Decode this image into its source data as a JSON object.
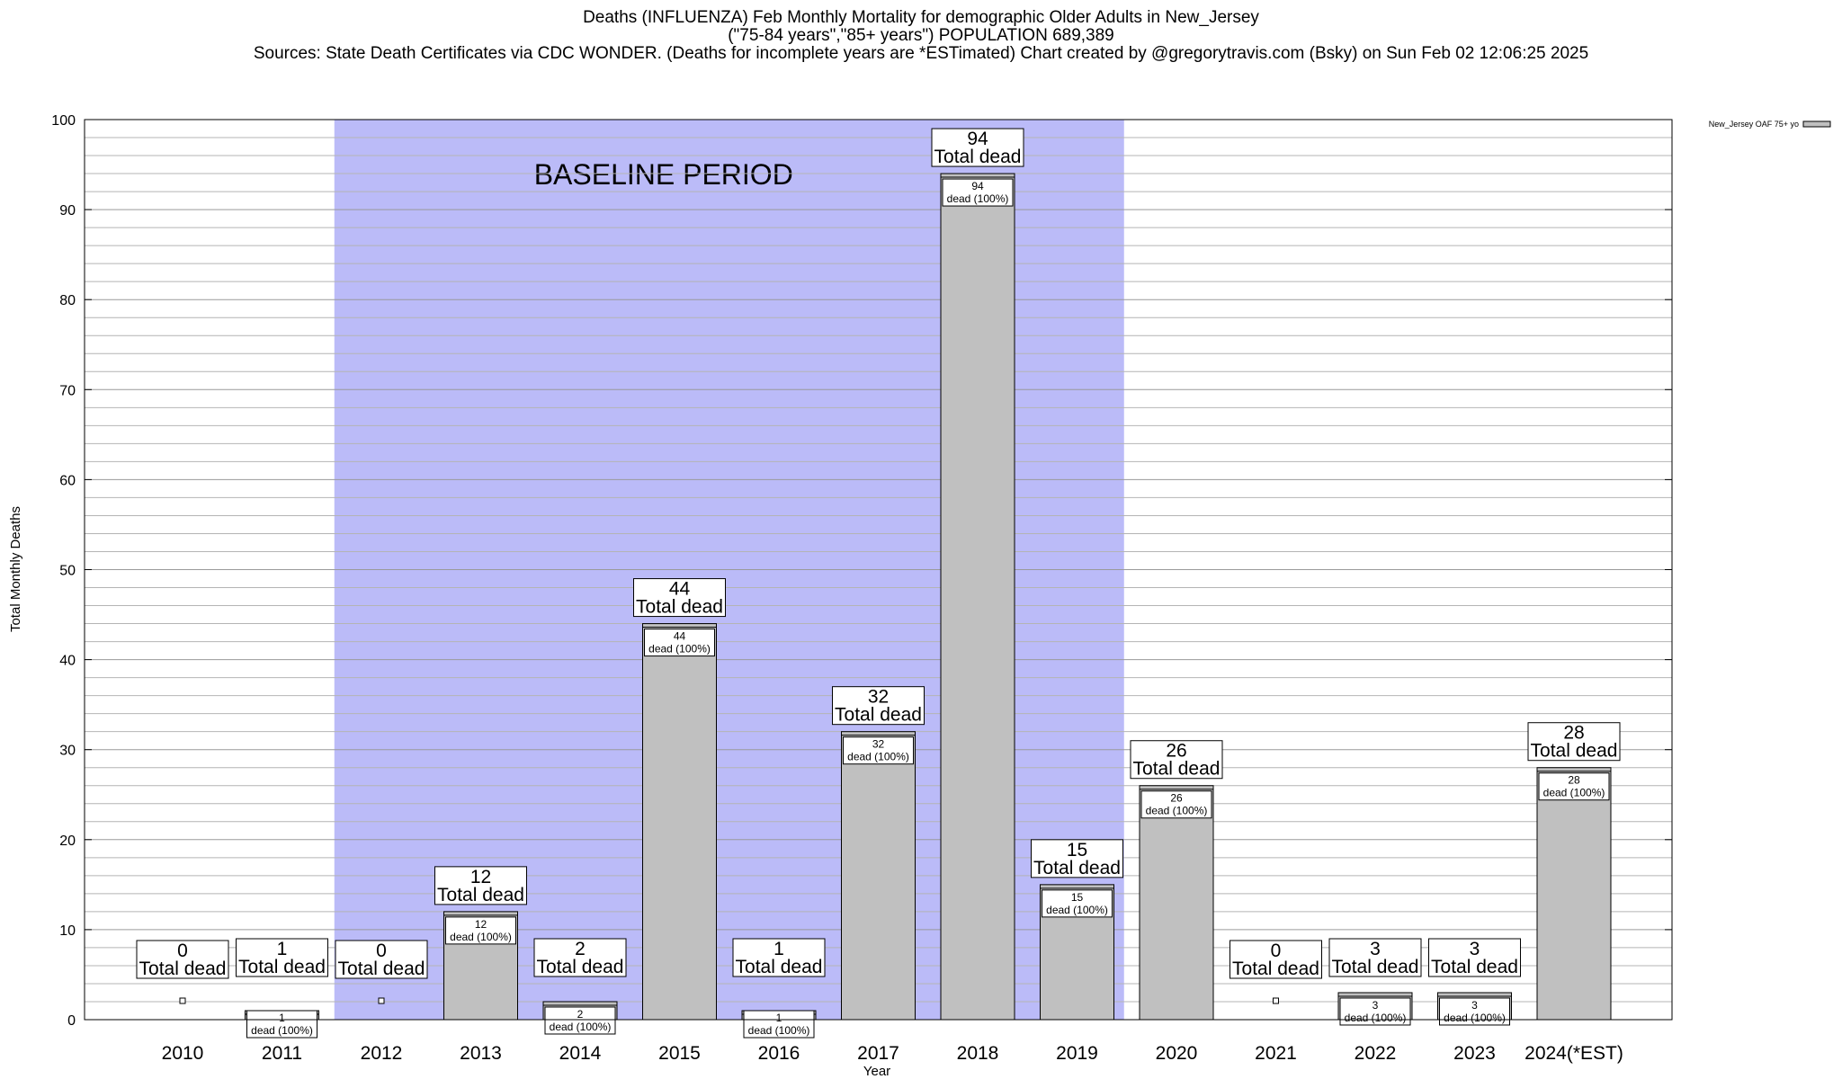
{
  "chart_data": {
    "type": "bar",
    "title": [
      "Deaths (INFLUENZA) Feb Monthly Mortality for demographic Older Adults in New_Jersey",
      "(\"75-84 years\",\"85+ years\") POPULATION 689,389",
      "Sources: State Death Certificates via CDC WONDER. (Deaths for incomplete years are *ESTimated)                 Chart created by @gregorytravis.com (Bsky) on Sun Feb 02 12:06:25 2025"
    ],
    "xlabel": "Year",
    "ylabel": "Total Monthly Deaths",
    "ylim": [
      0,
      100
    ],
    "yticks": [
      0,
      10,
      20,
      30,
      40,
      50,
      60,
      70,
      80,
      90,
      100
    ],
    "grid": true,
    "categories": [
      "2010",
      "2011",
      "2012",
      "2013",
      "2014",
      "2015",
      "2016",
      "2017",
      "2018",
      "2019",
      "2020",
      "2021",
      "2022",
      "2023",
      "2024(*EST)"
    ],
    "series": [
      {
        "name": "New_Jersey OAF 75+ yo",
        "color": "#c0c0c0",
        "values": [
          0,
          1,
          0,
          12,
          2,
          44,
          1,
          32,
          94,
          15,
          26,
          0,
          3,
          3,
          28
        ]
      }
    ],
    "bar_top_label": "Total dead",
    "bar_inner_label": "dead (100%)",
    "annotation": {
      "text": "BASELINE PERIOD",
      "from_category": "2012",
      "to_category": "2019",
      "color": "#bbbbf8"
    },
    "legend_position": "top-right"
  }
}
